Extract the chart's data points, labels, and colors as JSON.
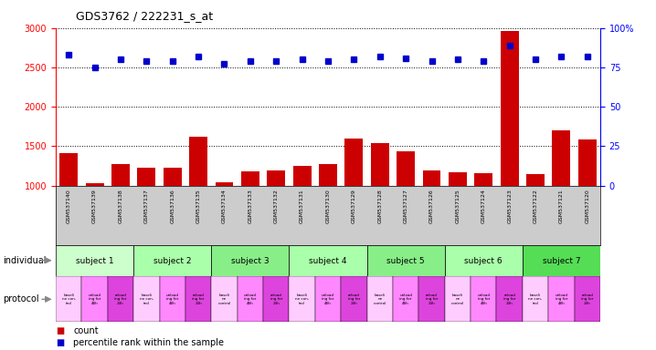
{
  "title": "GDS3762 / 222231_s_at",
  "samples": [
    "GSM537140",
    "GSM537139",
    "GSM537138",
    "GSM537137",
    "GSM537136",
    "GSM537135",
    "GSM537134",
    "GSM537133",
    "GSM537132",
    "GSM537131",
    "GSM537130",
    "GSM537129",
    "GSM537128",
    "GSM537127",
    "GSM537126",
    "GSM537125",
    "GSM537124",
    "GSM537123",
    "GSM537122",
    "GSM537121",
    "GSM537120"
  ],
  "counts": [
    1410,
    1030,
    1270,
    1230,
    1230,
    1620,
    1040,
    1180,
    1190,
    1250,
    1270,
    1600,
    1540,
    1430,
    1190,
    1170,
    1160,
    2960,
    1150,
    1700,
    1590
  ],
  "percentile_ranks": [
    83,
    75,
    80,
    79,
    79,
    82,
    77,
    79,
    79,
    80,
    79,
    80,
    82,
    81,
    79,
    80,
    79,
    89,
    80,
    82,
    82
  ],
  "ylim_left": [
    1000,
    3000
  ],
  "ylim_right": [
    0,
    100
  ],
  "yticks_left": [
    1000,
    1500,
    2000,
    2500,
    3000
  ],
  "yticks_right": [
    0,
    25,
    50,
    75,
    100
  ],
  "ytick_right_labels": [
    "0",
    "25",
    "50",
    "75",
    "100%"
  ],
  "subjects": [
    {
      "label": "subject 1",
      "start": 0,
      "end": 3,
      "color": "#ccffcc"
    },
    {
      "label": "subject 2",
      "start": 3,
      "end": 6,
      "color": "#aaffaa"
    },
    {
      "label": "subject 3",
      "start": 6,
      "end": 9,
      "color": "#88ee88"
    },
    {
      "label": "subject 4",
      "start": 9,
      "end": 12,
      "color": "#aaffaa"
    },
    {
      "label": "subject 5",
      "start": 12,
      "end": 15,
      "color": "#88ee88"
    },
    {
      "label": "subject 6",
      "start": 15,
      "end": 18,
      "color": "#aaffaa"
    },
    {
      "label": "subject 7",
      "start": 18,
      "end": 21,
      "color": "#55dd55"
    }
  ],
  "prot_labels": [
    "baseli\nne con-\ntrol",
    "unload\ning for\n48h",
    "reload\ning for\n24h",
    "baseli\nne con-\ntrol",
    "unload\ning for\n48h",
    "reload\ning for\n24h",
    "baseli\nne\ncontrol",
    "unload\ning for\n48h",
    "reload\ning for\n24h",
    "baseli\nne con-\ntrol",
    "unload\ning for\n48h",
    "reload\ning for\n24h",
    "baseli\nne\ncontrol",
    "unload\ning for\n48h",
    "reload\ning for\n24h",
    "baseli\nne\ncontrol",
    "unload\ning for\n48h",
    "reload\ning for\n24h",
    "baseli\nne con-\ntrol",
    "unload\ning for\n48h",
    "reload\ning for\n24h"
  ],
  "prot_colors": [
    "#ffccff",
    "#ff88ff",
    "#dd44dd",
    "#ffccff",
    "#ff88ff",
    "#dd44dd",
    "#ffccff",
    "#ff88ff",
    "#dd44dd",
    "#ffccff",
    "#ff88ff",
    "#dd44dd",
    "#ffccff",
    "#ff88ff",
    "#dd44dd",
    "#ffccff",
    "#ff88ff",
    "#dd44dd",
    "#ffccff",
    "#ff88ff",
    "#dd44dd"
  ],
  "bar_color": "#cc0000",
  "dot_color": "#0000cc",
  "background_color": "#ffffff",
  "xlabels_bg": "#cccccc",
  "individual_label": "individual",
  "protocol_label": "protocol"
}
